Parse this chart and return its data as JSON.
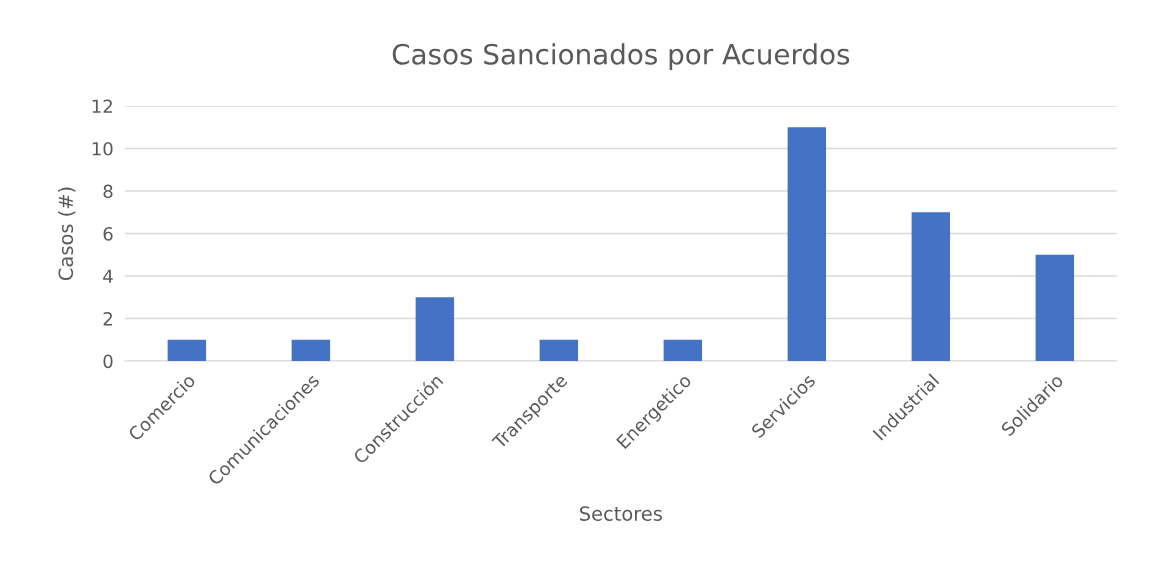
{
  "chart_data": {
    "type": "bar",
    "title": "Casos Sancionados por Acuerdos",
    "xlabel": "Sectores",
    "ylabel": "Casos (#)",
    "categories": [
      "Comercio",
      "Comunicaciones",
      "Construcción",
      "Transporte",
      "Energetico",
      "Servicios",
      "Industrial",
      "Solidario"
    ],
    "values": [
      1,
      1,
      3,
      1,
      1,
      11,
      7,
      5
    ],
    "color": "#4472c4",
    "ylim": [
      0,
      12
    ],
    "yticks": [
      0,
      2,
      4,
      6,
      8,
      10,
      12
    ],
    "grid": "y"
  }
}
